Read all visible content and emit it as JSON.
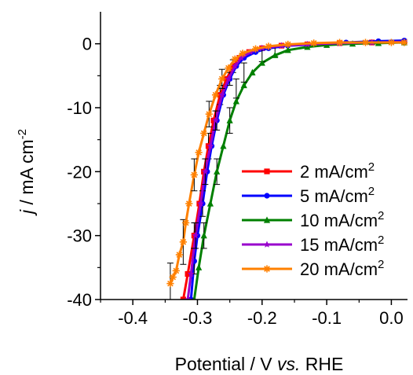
{
  "chart_data": {
    "type": "line",
    "xlabel": {
      "main": "Potential / V ",
      "italic": "vs.",
      "tail": " RHE"
    },
    "ylabel": {
      "italic": "j",
      "main": " / mA cm",
      "sup": "-2"
    },
    "xlim": [
      -0.45,
      0.025
    ],
    "ylim": [
      -40,
      5
    ],
    "x_ticks": [
      -0.4,
      -0.3,
      -0.2,
      -0.1,
      0.0
    ],
    "x_tick_labels": [
      "-0.4",
      "-0.3",
      "-0.2",
      "-0.1",
      "0.0"
    ],
    "y_ticks": [
      0,
      -10,
      -20,
      -30,
      -40
    ],
    "y_tick_labels": [
      "0",
      "-10",
      "-20",
      "-30",
      "-40"
    ],
    "legend_position": "bottom-right",
    "series": [
      {
        "name": "2 mA/cm",
        "sup": "2",
        "color": "#ff0000",
        "marker": "square",
        "points": [
          [
            -0.322,
            -40
          ],
          [
            -0.315,
            -36
          ],
          [
            -0.305,
            -30
          ],
          [
            -0.297,
            -25
          ],
          [
            -0.29,
            -20
          ],
          [
            -0.283,
            -16
          ],
          [
            -0.275,
            -12
          ],
          [
            -0.265,
            -8
          ],
          [
            -0.255,
            -5.5
          ],
          [
            -0.245,
            -3.5
          ],
          [
            -0.235,
            -2.2
          ],
          [
            -0.22,
            -1.3
          ],
          [
            -0.2,
            -0.7
          ],
          [
            -0.17,
            -0.3
          ],
          [
            -0.13,
            -0.1
          ],
          [
            -0.08,
            0.1
          ],
          [
            -0.03,
            0.2
          ],
          [
            0.02,
            0.3
          ]
        ],
        "error_bars": [
          [
            -0.305,
            -30,
            2
          ],
          [
            -0.283,
            -16,
            2
          ],
          [
            -0.265,
            -8,
            1.5
          ],
          [
            -0.245,
            -3.5,
            1
          ]
        ]
      },
      {
        "name": "5 mA/cm",
        "sup": "2",
        "color": "#0000ff",
        "marker": "circle",
        "points": [
          [
            -0.31,
            -40
          ],
          [
            -0.305,
            -34
          ],
          [
            -0.3,
            -30
          ],
          [
            -0.292,
            -25
          ],
          [
            -0.285,
            -20
          ],
          [
            -0.278,
            -16
          ],
          [
            -0.27,
            -12
          ],
          [
            -0.26,
            -8
          ],
          [
            -0.25,
            -5.5
          ],
          [
            -0.24,
            -3.5
          ],
          [
            -0.228,
            -2.2
          ],
          [
            -0.21,
            -1.3
          ],
          [
            -0.19,
            -0.7
          ],
          [
            -0.16,
            -0.3
          ],
          [
            -0.12,
            -0.1
          ],
          [
            -0.07,
            0.2
          ],
          [
            -0.02,
            0.4
          ],
          [
            0.02,
            0.5
          ]
        ],
        "error_bars": [
          [
            -0.305,
            -34,
            2
          ],
          [
            -0.292,
            -25,
            2
          ],
          [
            -0.27,
            -12,
            1.5
          ],
          [
            -0.25,
            -5.5,
            1
          ]
        ]
      },
      {
        "name": "10 mA/cm",
        "sup": "2",
        "color": "#008000",
        "marker": "triangle",
        "points": [
          [
            -0.305,
            -40
          ],
          [
            -0.298,
            -35
          ],
          [
            -0.29,
            -30
          ],
          [
            -0.28,
            -25
          ],
          [
            -0.27,
            -20
          ],
          [
            -0.26,
            -16
          ],
          [
            -0.25,
            -12
          ],
          [
            -0.24,
            -9
          ],
          [
            -0.228,
            -6.5
          ],
          [
            -0.215,
            -4.5
          ],
          [
            -0.2,
            -3
          ],
          [
            -0.18,
            -1.8
          ],
          [
            -0.16,
            -1
          ],
          [
            -0.13,
            -0.5
          ],
          [
            -0.1,
            -0.2
          ],
          [
            -0.06,
            0
          ],
          [
            -0.02,
            0.1
          ],
          [
            0.02,
            0.2
          ]
        ],
        "error_bars": [
          [
            -0.29,
            -30,
            2
          ],
          [
            -0.27,
            -20,
            2
          ],
          [
            -0.25,
            -12,
            2
          ],
          [
            -0.24,
            -7,
            1.5
          ],
          [
            -0.228,
            -4.5,
            1.5
          ],
          [
            -0.2,
            -1.8,
            1
          ],
          [
            -0.18,
            -1.2,
            0.8
          ]
        ]
      },
      {
        "name": "15 mA/cm",
        "sup": "2",
        "color": "#9900cc",
        "marker": "star",
        "points": [
          [
            -0.315,
            -40
          ],
          [
            -0.31,
            -36
          ],
          [
            -0.303,
            -30
          ],
          [
            -0.295,
            -25
          ],
          [
            -0.288,
            -20
          ],
          [
            -0.28,
            -16
          ],
          [
            -0.272,
            -12
          ],
          [
            -0.262,
            -8
          ],
          [
            -0.252,
            -5.5
          ],
          [
            -0.242,
            -3.5
          ],
          [
            -0.232,
            -2.2
          ],
          [
            -0.218,
            -1.3
          ],
          [
            -0.2,
            -0.7
          ],
          [
            -0.17,
            -0.3
          ],
          [
            -0.13,
            -0.1
          ],
          [
            -0.08,
            0.1
          ],
          [
            -0.03,
            0.2
          ],
          [
            0.02,
            0.3
          ]
        ],
        "error_bars": [
          [
            -0.303,
            -30,
            2
          ],
          [
            -0.288,
            -20,
            2
          ],
          [
            -0.272,
            -12,
            1.5
          ]
        ]
      },
      {
        "name": "20 mA/cm",
        "sup": "2",
        "color": "#ff8000",
        "marker": "asterisk",
        "points": [
          [
            -0.342,
            -37.5
          ],
          [
            -0.338,
            -36.5
          ],
          [
            -0.333,
            -35.5
          ],
          [
            -0.328,
            -33
          ],
          [
            -0.322,
            -31
          ],
          [
            -0.318,
            -28
          ],
          [
            -0.313,
            -25
          ],
          [
            -0.305,
            -20.5
          ],
          [
            -0.298,
            -17
          ],
          [
            -0.29,
            -14
          ],
          [
            -0.282,
            -11
          ],
          [
            -0.272,
            -8
          ],
          [
            -0.262,
            -5.5
          ],
          [
            -0.252,
            -3.8
          ],
          [
            -0.242,
            -2.4
          ],
          [
            -0.23,
            -1.5
          ],
          [
            -0.21,
            -0.8
          ],
          [
            -0.19,
            -0.4
          ],
          [
            -0.16,
            -0.1
          ],
          [
            -0.12,
            0.1
          ],
          [
            -0.08,
            0.2
          ],
          [
            -0.04,
            0.2
          ],
          [
            0.0,
            0.2
          ],
          [
            0.02,
            0.2
          ]
        ],
        "error_bars": [
          [
            -0.342,
            -37.5,
            3.2
          ],
          [
            -0.322,
            -31,
            3.5
          ],
          [
            -0.305,
            -20.5,
            2.5
          ],
          [
            -0.282,
            -11,
            2
          ],
          [
            -0.262,
            -5.5,
            1.5
          ]
        ]
      }
    ]
  }
}
